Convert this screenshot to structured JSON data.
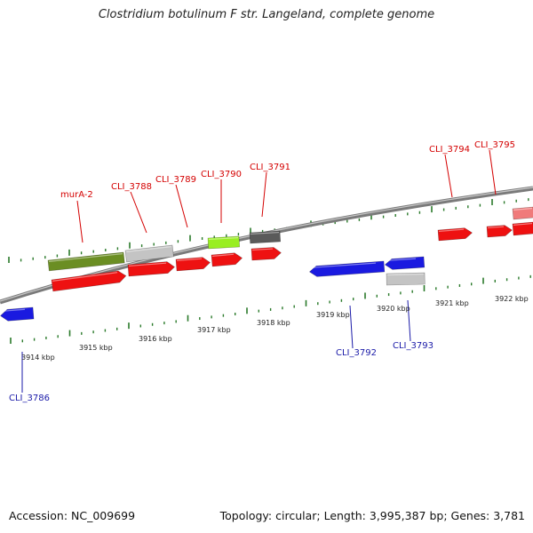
{
  "title": "Clostridium botulinum F str. Langeland, complete genome",
  "footer": {
    "accession": "Accession: NC_009699",
    "topology": "Topology: circular; Length: 3,995,387 bp; Genes: 3,781"
  },
  "colors": {
    "backbone": "#8a8a8a",
    "tick": "#2a7a2a",
    "label_forward": "#d40000",
    "label_reverse": "#1a1aa8",
    "gene_red": "#ee1111",
    "gene_blue": "#1a1ae0",
    "gene_olive": "#6b8e23",
    "gene_lightgray": "#c4c4c4",
    "gene_lime": "#99ee22",
    "gene_darkgray": "#5a5a5a",
    "gene_pink": "#f07a7a"
  },
  "kbp_labels": [
    "3914 kbp",
    "3915 kbp",
    "3916 kbp",
    "3917 kbp",
    "3918 kbp",
    "3919 kbp",
    "3920 kbp",
    "3921 kbp",
    "3922 kbp"
  ],
  "gene_labels": [
    {
      "name": "murA-2",
      "strand": "forward"
    },
    {
      "name": "CLI_3788",
      "strand": "forward"
    },
    {
      "name": "CLI_3789",
      "strand": "forward"
    },
    {
      "name": "CLI_3790",
      "strand": "forward"
    },
    {
      "name": "CLI_3791",
      "strand": "forward"
    },
    {
      "name": "CLI_3794",
      "strand": "forward"
    },
    {
      "name": "CLI_3795",
      "strand": "forward"
    },
    {
      "name": "CLI_3786",
      "strand": "reverse"
    },
    {
      "name": "CLI_3792",
      "strand": "reverse"
    },
    {
      "name": "CLI_3793",
      "strand": "reverse"
    }
  ]
}
